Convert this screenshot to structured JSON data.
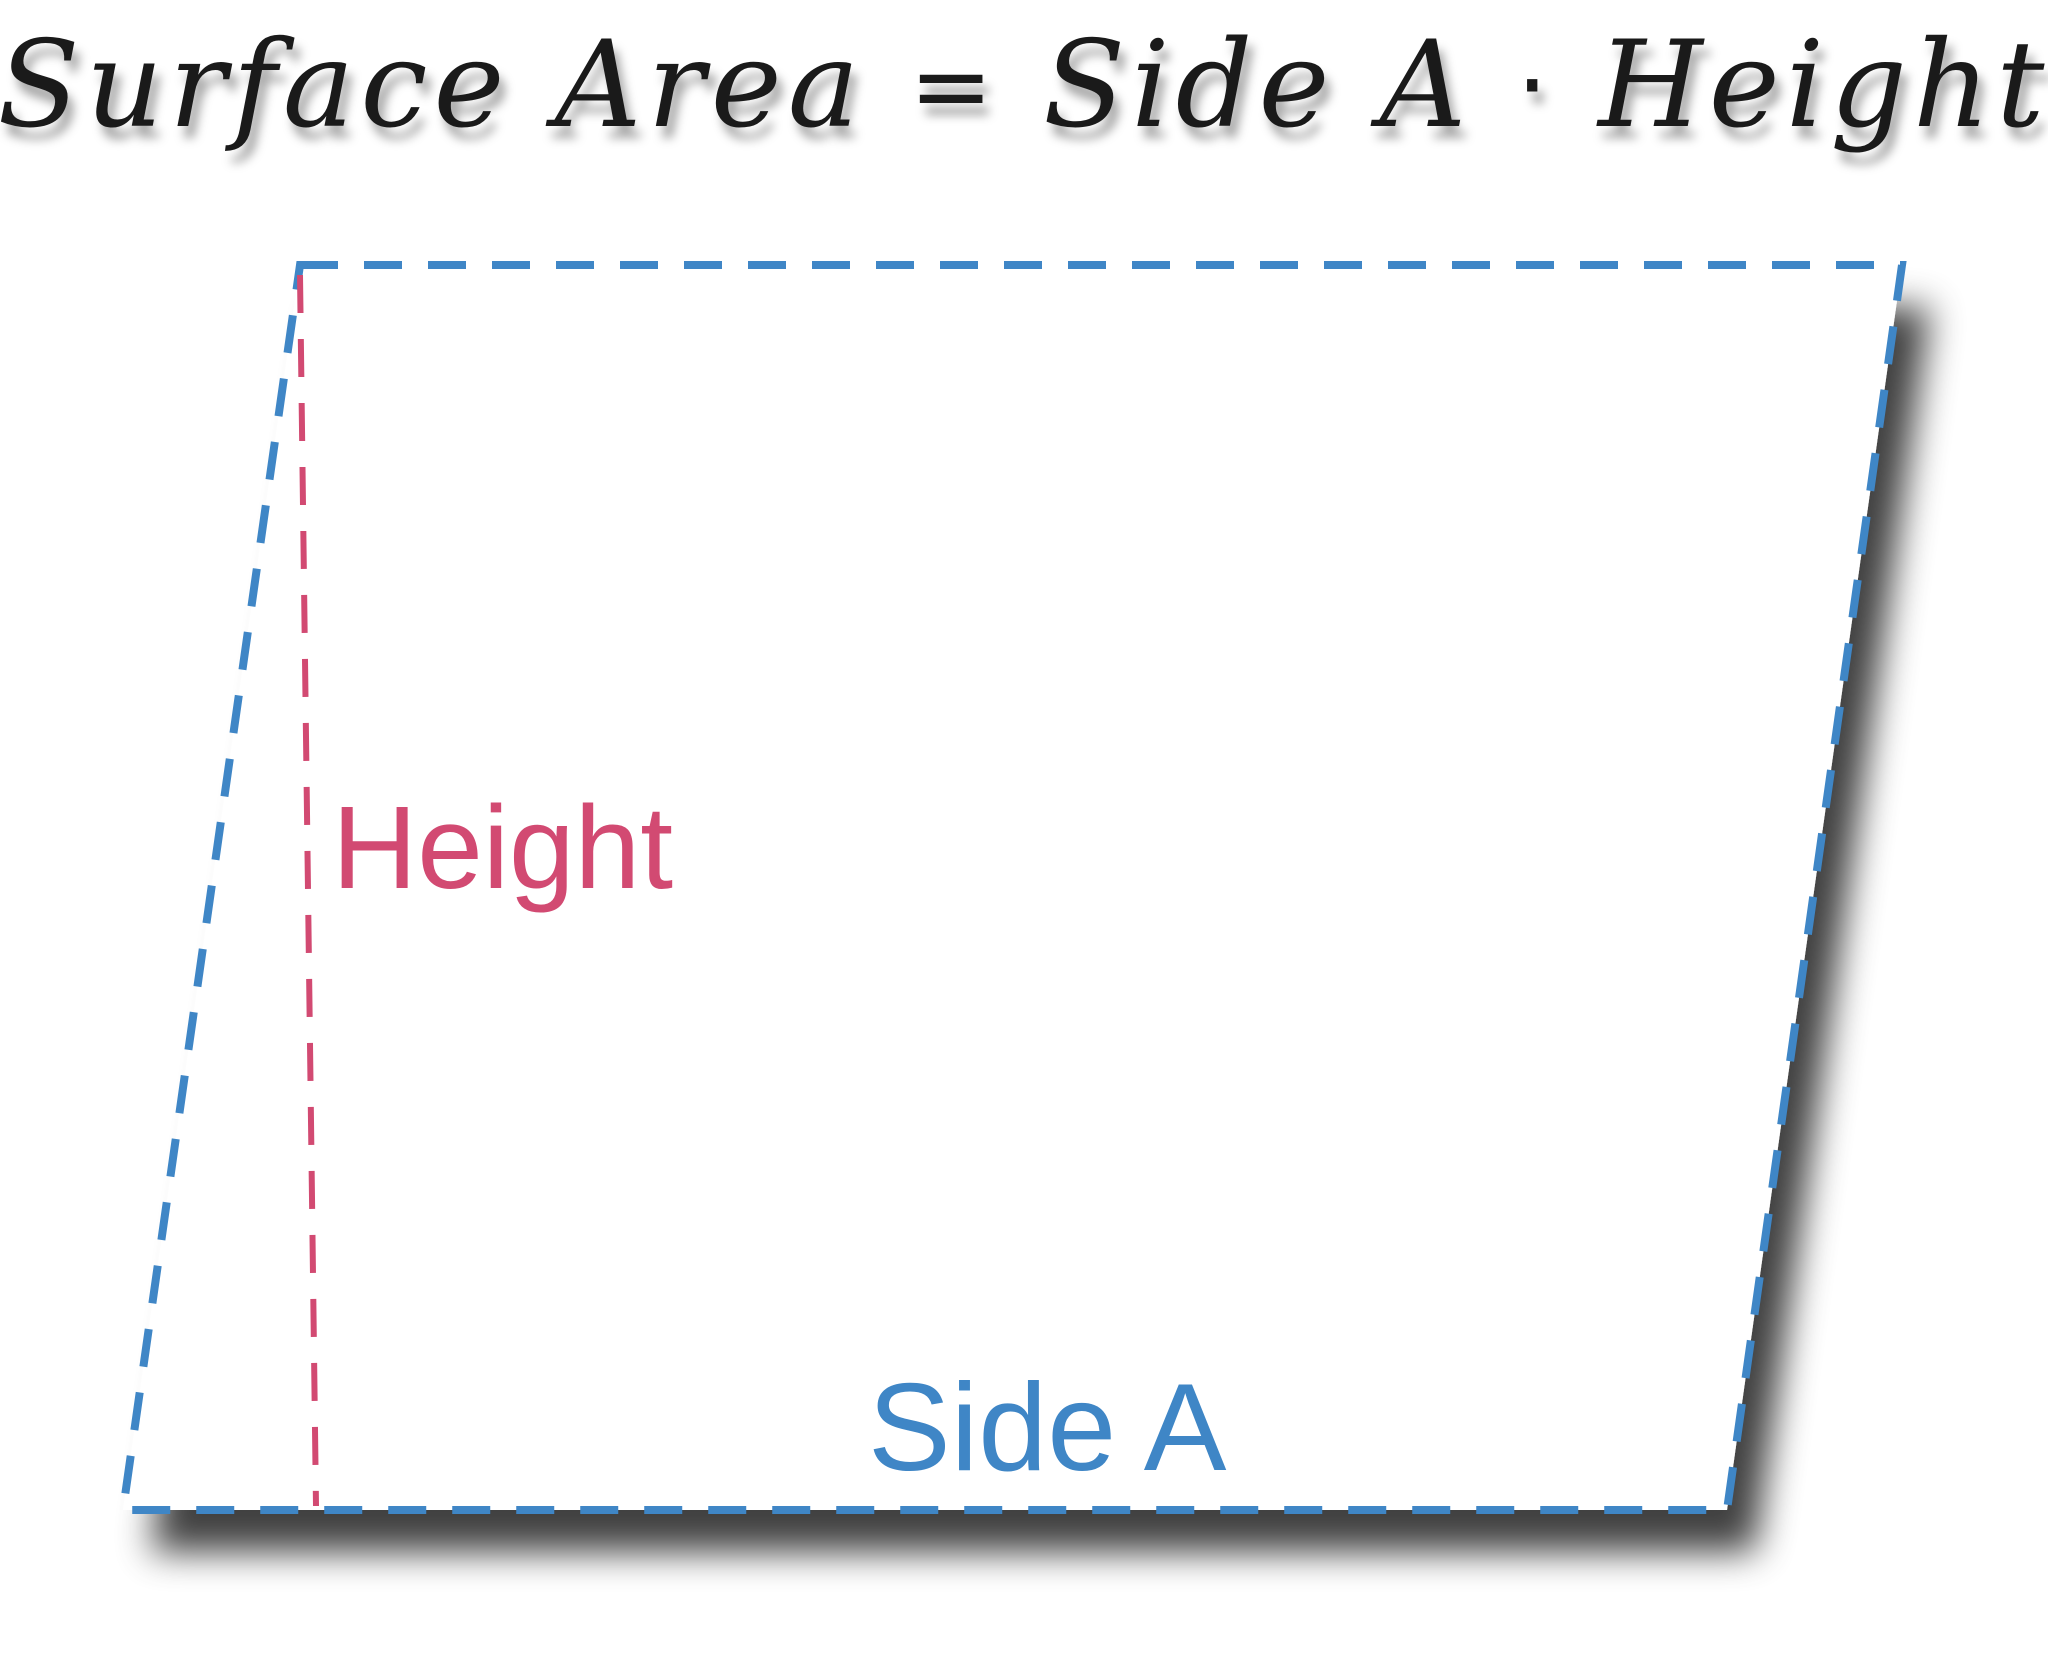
{
  "formula": {
    "term1": "Surface Area",
    "equals": "=",
    "term2": "Side A",
    "dot": "·",
    "term3": "Height"
  },
  "labels": {
    "height": "Height",
    "side_a": "Side A"
  },
  "colors": {
    "side_outline": "#3f86c6",
    "height_line": "#d24a72",
    "fill": "#ffffff"
  }
}
